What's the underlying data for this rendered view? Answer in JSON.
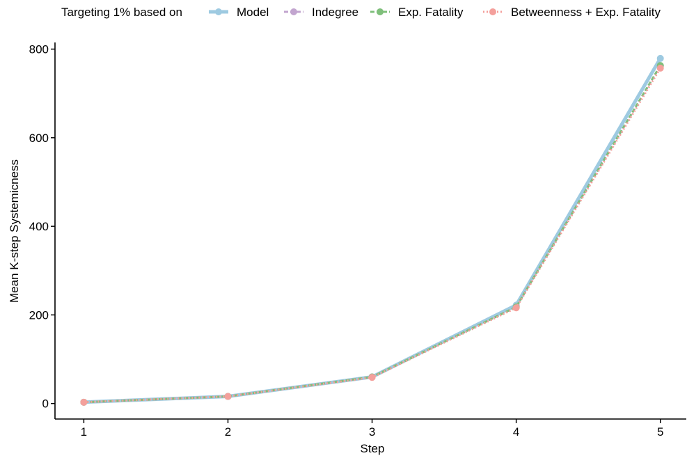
{
  "chart_data": {
    "type": "line",
    "xlabel": "Step",
    "ylabel": "Mean K-step Systemicness",
    "x": [
      1,
      2,
      3,
      4,
      5
    ],
    "x_ticks": [
      "1",
      "2",
      "3",
      "4",
      "5"
    ],
    "y_ticks": [
      "0",
      "200",
      "400",
      "600",
      "800"
    ],
    "xlim": [
      0.8,
      5.18
    ],
    "ylim": [
      -35,
      815
    ],
    "grid": false,
    "legend": {
      "title": "Targeting 1% based on",
      "placement": "top"
    },
    "series": [
      {
        "name": "Model",
        "color": "#9ecae1",
        "line_style": "solid",
        "values": [
          3,
          16,
          60,
          222,
          779
        ]
      },
      {
        "name": "Indegree",
        "color": "#c2a5cf",
        "line_style": "dashed",
        "values": [
          3,
          16,
          60,
          218,
          762
        ]
      },
      {
        "name": "Exp. Fatality",
        "color": "#7fbf7b",
        "line_style": "dashed",
        "values": [
          3,
          16,
          60,
          218,
          763
        ]
      },
      {
        "name": "Betweenness + Exp. Fatality",
        "color": "#f4a09c",
        "line_style": "dotted",
        "values": [
          3,
          16,
          59,
          216,
          757
        ]
      }
    ]
  }
}
